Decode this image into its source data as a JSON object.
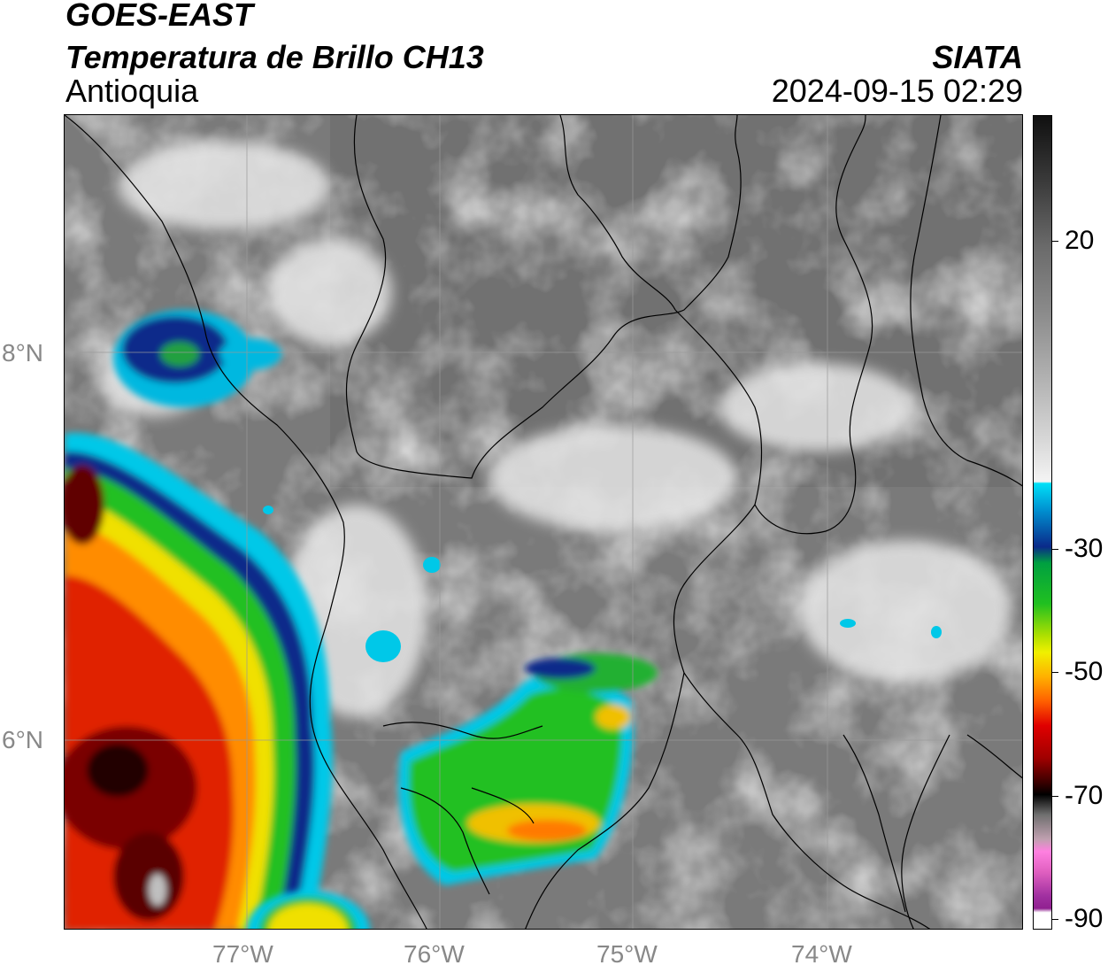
{
  "header": {
    "title": "GOES-EAST",
    "product": "Temperatura de Brillo CH13",
    "region": "Antioquia",
    "brand": "SIATA",
    "datetime": "2024-09-15 02:29"
  },
  "axes": {
    "lat_labels": [
      "8°N",
      "6°N"
    ],
    "lon_labels": [
      "77°W",
      "76°W",
      "75°W",
      "74°W"
    ]
  },
  "colorbar": {
    "labels": [
      "20",
      "-30",
      "-50",
      "-70",
      "-90"
    ],
    "colors": {
      "warm_gray_top": "#1a1a1a",
      "mid_gray": "#8a8a8a",
      "light": "#f2f2f2",
      "cyan": "#00d8f0",
      "blue": "#0a2a8a",
      "green": "#20c020",
      "yellow": "#f0f000",
      "orange": "#ff8000",
      "red": "#e00000",
      "dark_red": "#600000",
      "black": "#000000",
      "pink": "#e060c0",
      "purple": "#902090"
    }
  }
}
